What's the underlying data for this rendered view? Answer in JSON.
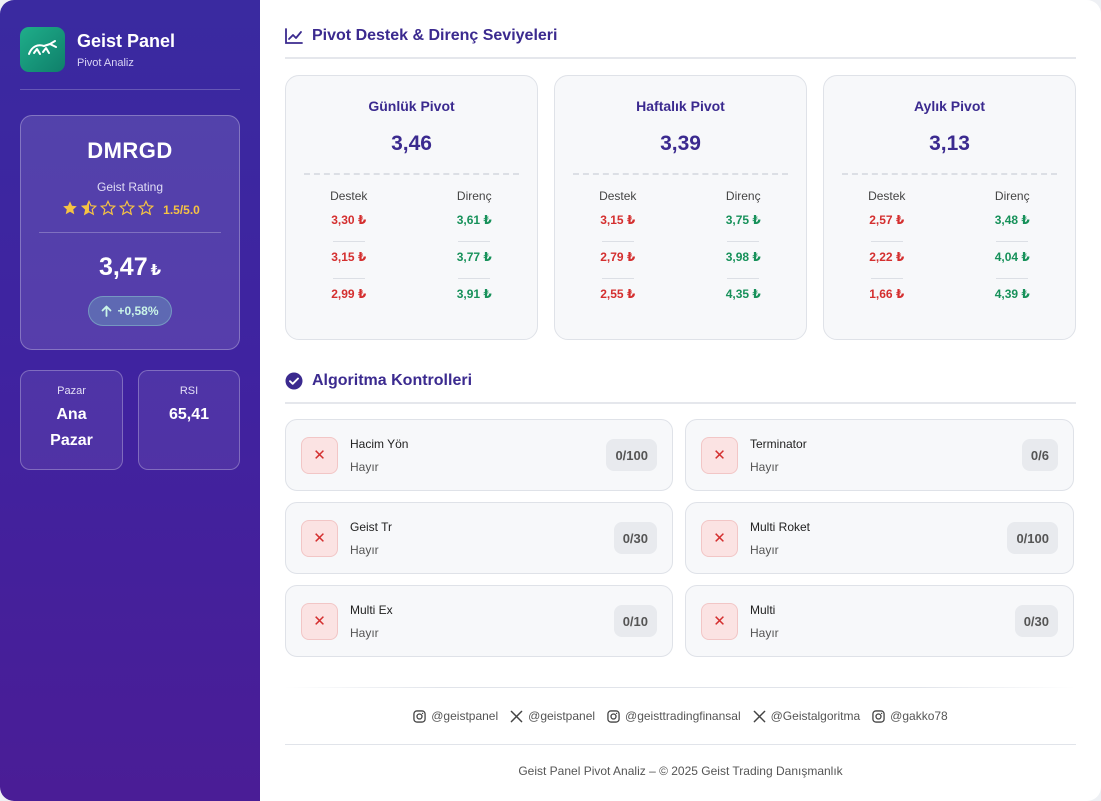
{
  "brand": {
    "title": "Geist Panel",
    "subtitle": "Pivot Analiz"
  },
  "stock": {
    "ticker": "DMRGD",
    "rating_label": "Geist Rating",
    "rating_value": "1.5/5.0",
    "rating": 1.5,
    "price": "3,47",
    "currency": "₺",
    "change": "+0,58%"
  },
  "market": {
    "label": "Pazar",
    "value_line1": "Ana",
    "value_line2": "Pazar"
  },
  "rsi": {
    "label": "RSI",
    "value": "65,41"
  },
  "pivot_section": {
    "title": "Pivot Destek & Direnç Seviyeleri"
  },
  "pivots": [
    {
      "name": "Günlük Pivot",
      "value": "3,46",
      "support_label": "Destek",
      "resistance_label": "Direnç",
      "supports": [
        "3,30 ₺",
        "3,15 ₺",
        "2,99 ₺"
      ],
      "resistances": [
        "3,61 ₺",
        "3,77 ₺",
        "3,91 ₺"
      ]
    },
    {
      "name": "Haftalık Pivot",
      "value": "3,39",
      "support_label": "Destek",
      "resistance_label": "Direnç",
      "supports": [
        "3,15 ₺",
        "2,79 ₺",
        "2,55 ₺"
      ],
      "resistances": [
        "3,75 ₺",
        "3,98 ₺",
        "4,35 ₺"
      ]
    },
    {
      "name": "Aylık Pivot",
      "value": "3,13",
      "support_label": "Destek",
      "resistance_label": "Direnç",
      "supports": [
        "2,57 ₺",
        "2,22 ₺",
        "1,66 ₺"
      ],
      "resistances": [
        "3,48 ₺",
        "4,04 ₺",
        "4,39 ₺"
      ]
    }
  ],
  "algo_section": {
    "title": "Algoritma Kontrolleri"
  },
  "algos": [
    {
      "name": "Hacim Yön",
      "status": "Hayır",
      "score": "0/100"
    },
    {
      "name": "Terminator",
      "status": "Hayır",
      "score": "0/6"
    },
    {
      "name": "Geist Tr",
      "status": "Hayır",
      "score": "0/30"
    },
    {
      "name": "Multi Roket",
      "status": "Hayır",
      "score": "0/100"
    },
    {
      "name": "Multi Ex",
      "status": "Hayır",
      "score": "0/10"
    },
    {
      "name": "Multi",
      "status": "Hayır",
      "score": "0/30"
    }
  ],
  "socials": [
    {
      "platform": "instagram",
      "handle": "@geistpanel"
    },
    {
      "platform": "x",
      "handle": "@geistpanel"
    },
    {
      "platform": "instagram",
      "handle": "@geisttradingfinansal"
    },
    {
      "platform": "x",
      "handle": "@Geistalgoritma"
    },
    {
      "platform": "instagram",
      "handle": "@gakko78"
    }
  ],
  "footer": {
    "copyright": "Geist Panel Pivot Analiz – © 2025 Geist Trading Danışmanlık"
  },
  "colors": {
    "accent": "#3b2a8f",
    "support": "#d42f2f",
    "resistance": "#17915a",
    "star": "#f6c343"
  }
}
